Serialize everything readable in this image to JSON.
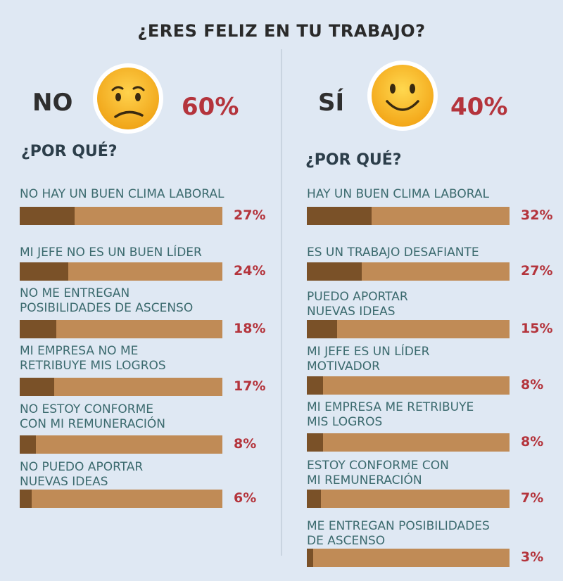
{
  "title": "¿ERES FELIZ EN TU TRABAJO?",
  "colors": {
    "background": "#dfe8f3",
    "bar_track": "#c08b56",
    "bar_fill": "#7a5128",
    "percent": "#b4343c",
    "label": "#3b6a6e"
  },
  "chart_data": [
    {
      "type": "bar",
      "answer": "NO",
      "answer_percent": "60%",
      "face_icon": "sad-face-icon",
      "subtitle": "¿POR QUÉ?",
      "categories": [
        "NO HAY UN BUEN CLIMA LABORAL",
        "MI JEFE NO ES UN BUEN LÍDER",
        "NO ME ENTREGAN\nPOSIBILIDADES DE ASCENSO",
        "MI EMPRESA NO ME\nRETRIBUYE MIS LOGROS",
        "NO ESTOY CONFORME\nCON MI REMUNERACIÓN",
        "NO PUEDO APORTAR\nNUEVAS IDEAS"
      ],
      "values": [
        27,
        24,
        18,
        17,
        8,
        6
      ],
      "value_labels": [
        "27%",
        "24%",
        "18%",
        "17%",
        "8%",
        "6%"
      ],
      "ylim": [
        0,
        100
      ]
    },
    {
      "type": "bar",
      "answer": "SÍ",
      "answer_percent": "40%",
      "face_icon": "happy-face-icon",
      "subtitle": "¿POR QUÉ?",
      "categories": [
        "HAY UN BUEN CLIMA LABORAL",
        "ES UN TRABAJO DESAFIANTE",
        "PUEDO APORTAR\nNUEVAS IDEAS",
        "MI JEFE ES UN LÍDER\nMOTIVADOR",
        "MI EMPRESA ME RETRIBUYE\nMIS LOGROS",
        "ESTOY CONFORME CON\nMI REMUNERACIÓN",
        "ME ENTREGAN POSIBILIDADES\nDE ASCENSO"
      ],
      "values": [
        32,
        27,
        15,
        8,
        8,
        7,
        3
      ],
      "value_labels": [
        "32%",
        "27%",
        "15%",
        "8%",
        "8%",
        "7%",
        "3%"
      ],
      "ylim": [
        0,
        100
      ]
    }
  ]
}
